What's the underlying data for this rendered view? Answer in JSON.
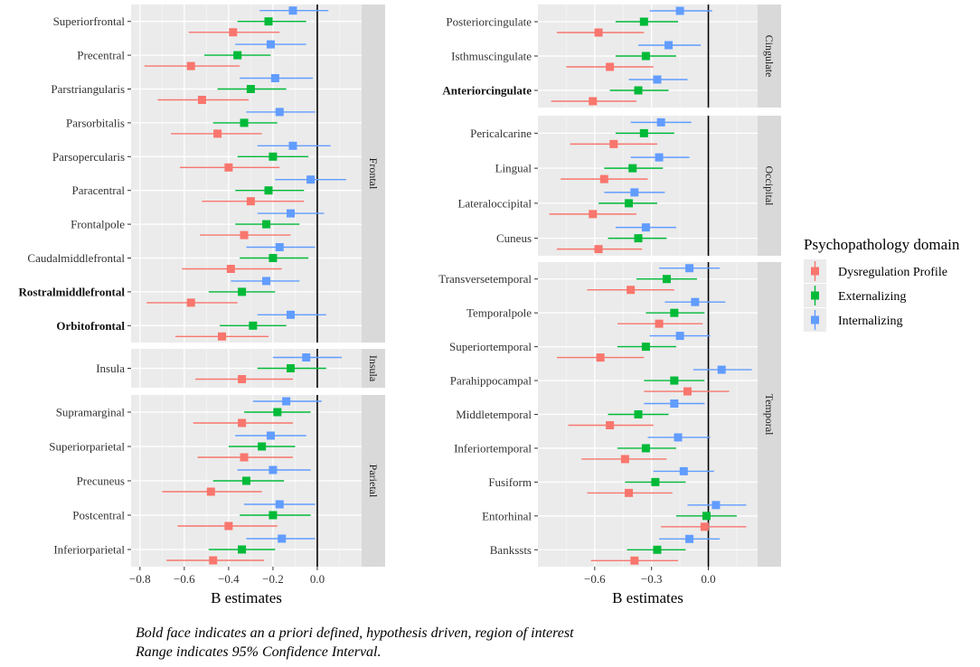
{
  "legend": {
    "title": "Psychopathology domain",
    "entries": [
      {
        "key": "dys",
        "label": "Dysregulation Profile",
        "color": "#F8766D"
      },
      {
        "key": "ext",
        "label": "Externalizing",
        "color": "#00BA38"
      },
      {
        "key": "int",
        "label": "Internalizing",
        "color": "#619CFF"
      }
    ]
  },
  "caption": {
    "line1": "Bold face indicates an a priori defined, hypothesis driven, region of interest",
    "line2": "Range indicates 95% Confidence Interval."
  },
  "chart_data": [
    {
      "type": "forest",
      "column": "left",
      "xlabel": "B estimates",
      "xlim": [
        -0.84,
        0.2
      ],
      "xticks": [
        -0.8,
        -0.6,
        -0.4,
        -0.2,
        0.0
      ],
      "xtick_labels": [
        "−0.8",
        "−0.6",
        "−0.4",
        "−0.2",
        "0.0"
      ],
      "panels": [
        {
          "name": "Frontal",
          "regions": [
            {
              "label": "Superiorfrontal",
              "bold": false,
              "dys": [
                -0.38,
                -0.58,
                -0.17
              ],
              "ext": [
                -0.22,
                -0.36,
                -0.05
              ],
              "int": [
                -0.11,
                -0.26,
                0.05
              ]
            },
            {
              "label": "Precentral",
              "bold": false,
              "dys": [
                -0.57,
                -0.78,
                -0.35
              ],
              "ext": [
                -0.36,
                -0.51,
                -0.21
              ],
              "int": [
                -0.21,
                -0.37,
                -0.05
              ]
            },
            {
              "label": "Parstriangularis",
              "bold": false,
              "dys": [
                -0.52,
                -0.72,
                -0.31
              ],
              "ext": [
                -0.3,
                -0.45,
                -0.14
              ],
              "int": [
                -0.19,
                -0.35,
                -0.02
              ]
            },
            {
              "label": "Parsorbitalis",
              "bold": false,
              "dys": [
                -0.45,
                -0.66,
                -0.25
              ],
              "ext": [
                -0.33,
                -0.47,
                -0.18
              ],
              "int": [
                -0.17,
                -0.32,
                -0.01
              ]
            },
            {
              "label": "Parsopercularis",
              "bold": false,
              "dys": [
                -0.4,
                -0.62,
                -0.17
              ],
              "ext": [
                -0.2,
                -0.36,
                -0.04
              ],
              "int": [
                -0.11,
                -0.27,
                0.06
              ]
            },
            {
              "label": "Paracentral",
              "bold": false,
              "dys": [
                -0.3,
                -0.52,
                -0.06
              ],
              "ext": [
                -0.22,
                -0.37,
                -0.06
              ],
              "int": [
                -0.03,
                -0.19,
                0.13
              ]
            },
            {
              "label": "Frontalpole",
              "bold": false,
              "dys": [
                -0.33,
                -0.53,
                -0.12
              ],
              "ext": [
                -0.23,
                -0.37,
                -0.08
              ],
              "int": [
                -0.12,
                -0.27,
                0.03
              ]
            },
            {
              "label": "Caudalmiddlefrontal",
              "bold": false,
              "dys": [
                -0.39,
                -0.61,
                -0.16
              ],
              "ext": [
                -0.2,
                -0.35,
                -0.04
              ],
              "int": [
                -0.17,
                -0.32,
                -0.01
              ]
            },
            {
              "label": "Rostralmiddlefrontal",
              "bold": true,
              "dys": [
                -0.57,
                -0.77,
                -0.36
              ],
              "ext": [
                -0.34,
                -0.49,
                -0.19
              ],
              "int": [
                -0.23,
                -0.39,
                -0.08
              ]
            },
            {
              "label": "Orbitofrontal",
              "bold": true,
              "dys": [
                -0.43,
                -0.64,
                -0.22
              ],
              "ext": [
                -0.29,
                -0.44,
                -0.14
              ],
              "int": [
                -0.12,
                -0.27,
                0.04
              ]
            }
          ]
        },
        {
          "name": "Insula",
          "regions": [
            {
              "label": "Insula",
              "bold": false,
              "dys": [
                -0.34,
                -0.55,
                -0.11
              ],
              "ext": [
                -0.12,
                -0.27,
                0.04
              ],
              "int": [
                -0.05,
                -0.2,
                0.11
              ]
            }
          ]
        },
        {
          "name": "Parietal",
          "regions": [
            {
              "label": "Supramarginal",
              "bold": false,
              "dys": [
                -0.34,
                -0.56,
                -0.11
              ],
              "ext": [
                -0.18,
                -0.33,
                -0.03
              ],
              "int": [
                -0.14,
                -0.29,
                0.02
              ]
            },
            {
              "label": "Superiorparietal",
              "bold": false,
              "dys": [
                -0.33,
                -0.54,
                -0.11
              ],
              "ext": [
                -0.25,
                -0.4,
                -0.1
              ],
              "int": [
                -0.21,
                -0.37,
                -0.05
              ]
            },
            {
              "label": "Precuneus",
              "bold": false,
              "dys": [
                -0.48,
                -0.7,
                -0.25
              ],
              "ext": [
                -0.32,
                -0.47,
                -0.15
              ],
              "int": [
                -0.2,
                -0.36,
                -0.03
              ]
            },
            {
              "label": "Postcentral",
              "bold": false,
              "dys": [
                -0.4,
                -0.63,
                -0.18
              ],
              "ext": [
                -0.2,
                -0.35,
                -0.03
              ],
              "int": [
                -0.17,
                -0.33,
                -0.01
              ]
            },
            {
              "label": "Inferiorparietal",
              "bold": false,
              "dys": [
                -0.47,
                -0.68,
                -0.24
              ],
              "ext": [
                -0.34,
                -0.49,
                -0.19
              ],
              "int": [
                -0.16,
                -0.32,
                -0.01
              ]
            }
          ]
        }
      ]
    },
    {
      "type": "forest",
      "column": "right",
      "xlabel": "B estimates",
      "xlim": [
        -0.9,
        0.26
      ],
      "xticks": [
        -0.6,
        -0.3,
        0.0
      ],
      "xtick_labels": [
        "−0.6",
        "−0.3",
        "0.0"
      ],
      "panels": [
        {
          "name": "Cingulate",
          "regions": [
            {
              "label": "Posteriorcingulate",
              "bold": false,
              "dys": [
                -0.58,
                -0.8,
                -0.34
              ],
              "ext": [
                -0.34,
                -0.49,
                -0.16
              ],
              "int": [
                -0.15,
                -0.31,
                0.02
              ]
            },
            {
              "label": "Isthmuscingulate",
              "bold": false,
              "dys": [
                -0.52,
                -0.75,
                -0.29
              ],
              "ext": [
                -0.33,
                -0.49,
                -0.17
              ],
              "int": [
                -0.21,
                -0.37,
                -0.04
              ]
            },
            {
              "label": "Anteriorcingulate",
              "bold": true,
              "dys": [
                -0.61,
                -0.83,
                -0.38
              ],
              "ext": [
                -0.37,
                -0.52,
                -0.21
              ],
              "int": [
                -0.27,
                -0.42,
                -0.11
              ]
            }
          ]
        },
        {
          "name": "Occipital",
          "regions": [
            {
              "label": "Pericalcarine",
              "bold": false,
              "dys": [
                -0.5,
                -0.73,
                -0.27
              ],
              "ext": [
                -0.34,
                -0.49,
                -0.18
              ],
              "int": [
                -0.25,
                -0.41,
                -0.09
              ]
            },
            {
              "label": "Lingual",
              "bold": false,
              "dys": [
                -0.55,
                -0.78,
                -0.32
              ],
              "ext": [
                -0.4,
                -0.55,
                -0.24
              ],
              "int": [
                -0.26,
                -0.41,
                -0.1
              ]
            },
            {
              "label": "Lateraloccipital",
              "bold": false,
              "dys": [
                -0.61,
                -0.84,
                -0.38
              ],
              "ext": [
                -0.42,
                -0.58,
                -0.27
              ],
              "int": [
                -0.39,
                -0.55,
                -0.23
              ]
            },
            {
              "label": "Cuneus",
              "bold": false,
              "dys": [
                -0.58,
                -0.8,
                -0.35
              ],
              "ext": [
                -0.37,
                -0.53,
                -0.22
              ],
              "int": [
                -0.33,
                -0.49,
                -0.17
              ]
            }
          ]
        },
        {
          "name": "Temporal",
          "regions": [
            {
              "label": "Transversetemporal",
              "bold": false,
              "dys": [
                -0.41,
                -0.64,
                -0.18
              ],
              "ext": [
                -0.22,
                -0.38,
                -0.06
              ],
              "int": [
                -0.1,
                -0.26,
                0.06
              ]
            },
            {
              "label": "Temporalpole",
              "bold": false,
              "dys": [
                -0.26,
                -0.48,
                -0.03
              ],
              "ext": [
                -0.18,
                -0.33,
                -0.02
              ],
              "int": [
                -0.07,
                -0.23,
                0.09
              ]
            },
            {
              "label": "Superiortemporal",
              "bold": false,
              "dys": [
                -0.57,
                -0.8,
                -0.34
              ],
              "ext": [
                -0.33,
                -0.48,
                -0.17
              ],
              "int": [
                -0.15,
                -0.31,
                0.01
              ]
            },
            {
              "label": "Parahippocampal",
              "bold": false,
              "dys": [
                -0.11,
                -0.34,
                0.11
              ],
              "ext": [
                -0.18,
                -0.34,
                -0.02
              ],
              "int": [
                0.07,
                -0.08,
                0.23
              ]
            },
            {
              "label": "Middletemporal",
              "bold": false,
              "dys": [
                -0.52,
                -0.74,
                -0.29
              ],
              "ext": [
                -0.37,
                -0.53,
                -0.21
              ],
              "int": [
                -0.18,
                -0.34,
                -0.02
              ]
            },
            {
              "label": "Inferiortemporal",
              "bold": false,
              "dys": [
                -0.44,
                -0.67,
                -0.22
              ],
              "ext": [
                -0.33,
                -0.48,
                -0.17
              ],
              "int": [
                -0.16,
                -0.32,
                0.01
              ]
            },
            {
              "label": "Fusiform",
              "bold": false,
              "dys": [
                -0.42,
                -0.64,
                -0.19
              ],
              "ext": [
                -0.28,
                -0.44,
                -0.12
              ],
              "int": [
                -0.13,
                -0.29,
                0.03
              ]
            },
            {
              "label": "Entorhinal",
              "bold": false,
              "dys": [
                -0.02,
                -0.25,
                0.2
              ],
              "ext": [
                -0.01,
                -0.17,
                0.15
              ],
              "int": [
                0.04,
                -0.11,
                0.2
              ]
            },
            {
              "label": "Bankssts",
              "bold": false,
              "dys": [
                -0.39,
                -0.62,
                -0.16
              ],
              "ext": [
                -0.27,
                -0.43,
                -0.12
              ],
              "int": [
                -0.1,
                -0.26,
                0.06
              ]
            }
          ]
        }
      ]
    }
  ]
}
